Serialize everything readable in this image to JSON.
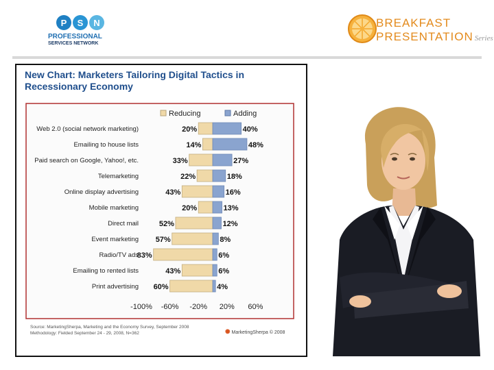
{
  "header": {
    "psn_letters": [
      "P",
      "S",
      "N"
    ],
    "psn_line1": "PROFESSIONAL",
    "psn_line2": "SERVICES NETWORK",
    "bp_line1": "BREAKFAST",
    "bp_line2": "PRESENTATION",
    "bp_series": "Series"
  },
  "source_text": "Source: MarketingSherpa, Marketing and the Economy Survey, September 2008\nMethodology: Fielded September 24 - 29, 2008, N=362",
  "brand": {
    "name": "MarketingSherpa",
    "year": "© 2008"
  },
  "colors": {
    "reducing": "#f0d9a8",
    "adding": "#8aa4cf",
    "title": "#1f4e8c",
    "border": "#b03030"
  },
  "chart_data": {
    "type": "bar",
    "orientation": "horizontal-diverging",
    "title": "New Chart: Marketers Tailoring Digital Tactics in Recessionary Economy",
    "categories": [
      "Web 2.0 (social network marketing)",
      "Emailing to house lists",
      "Paid search on Google, Yahoo!, etc.",
      "Telemarketing",
      "Online display advertising",
      "Mobile marketing",
      "Direct mail",
      "Event marketing",
      "Radio/TV ads",
      "Emailing to rented lists",
      "Print advertising"
    ],
    "series": [
      {
        "name": "Reducing",
        "values": [
          20,
          14,
          33,
          22,
          43,
          20,
          52,
          57,
          83,
          43,
          60
        ]
      },
      {
        "name": "Adding",
        "values": [
          40,
          48,
          27,
          18,
          16,
          13,
          12,
          8,
          6,
          6,
          4
        ]
      }
    ],
    "xticks": [
      "-100%",
      "-60%",
      "-20%",
      "20%",
      "60%"
    ],
    "xlim": [
      -100,
      60
    ],
    "legend": "top"
  }
}
